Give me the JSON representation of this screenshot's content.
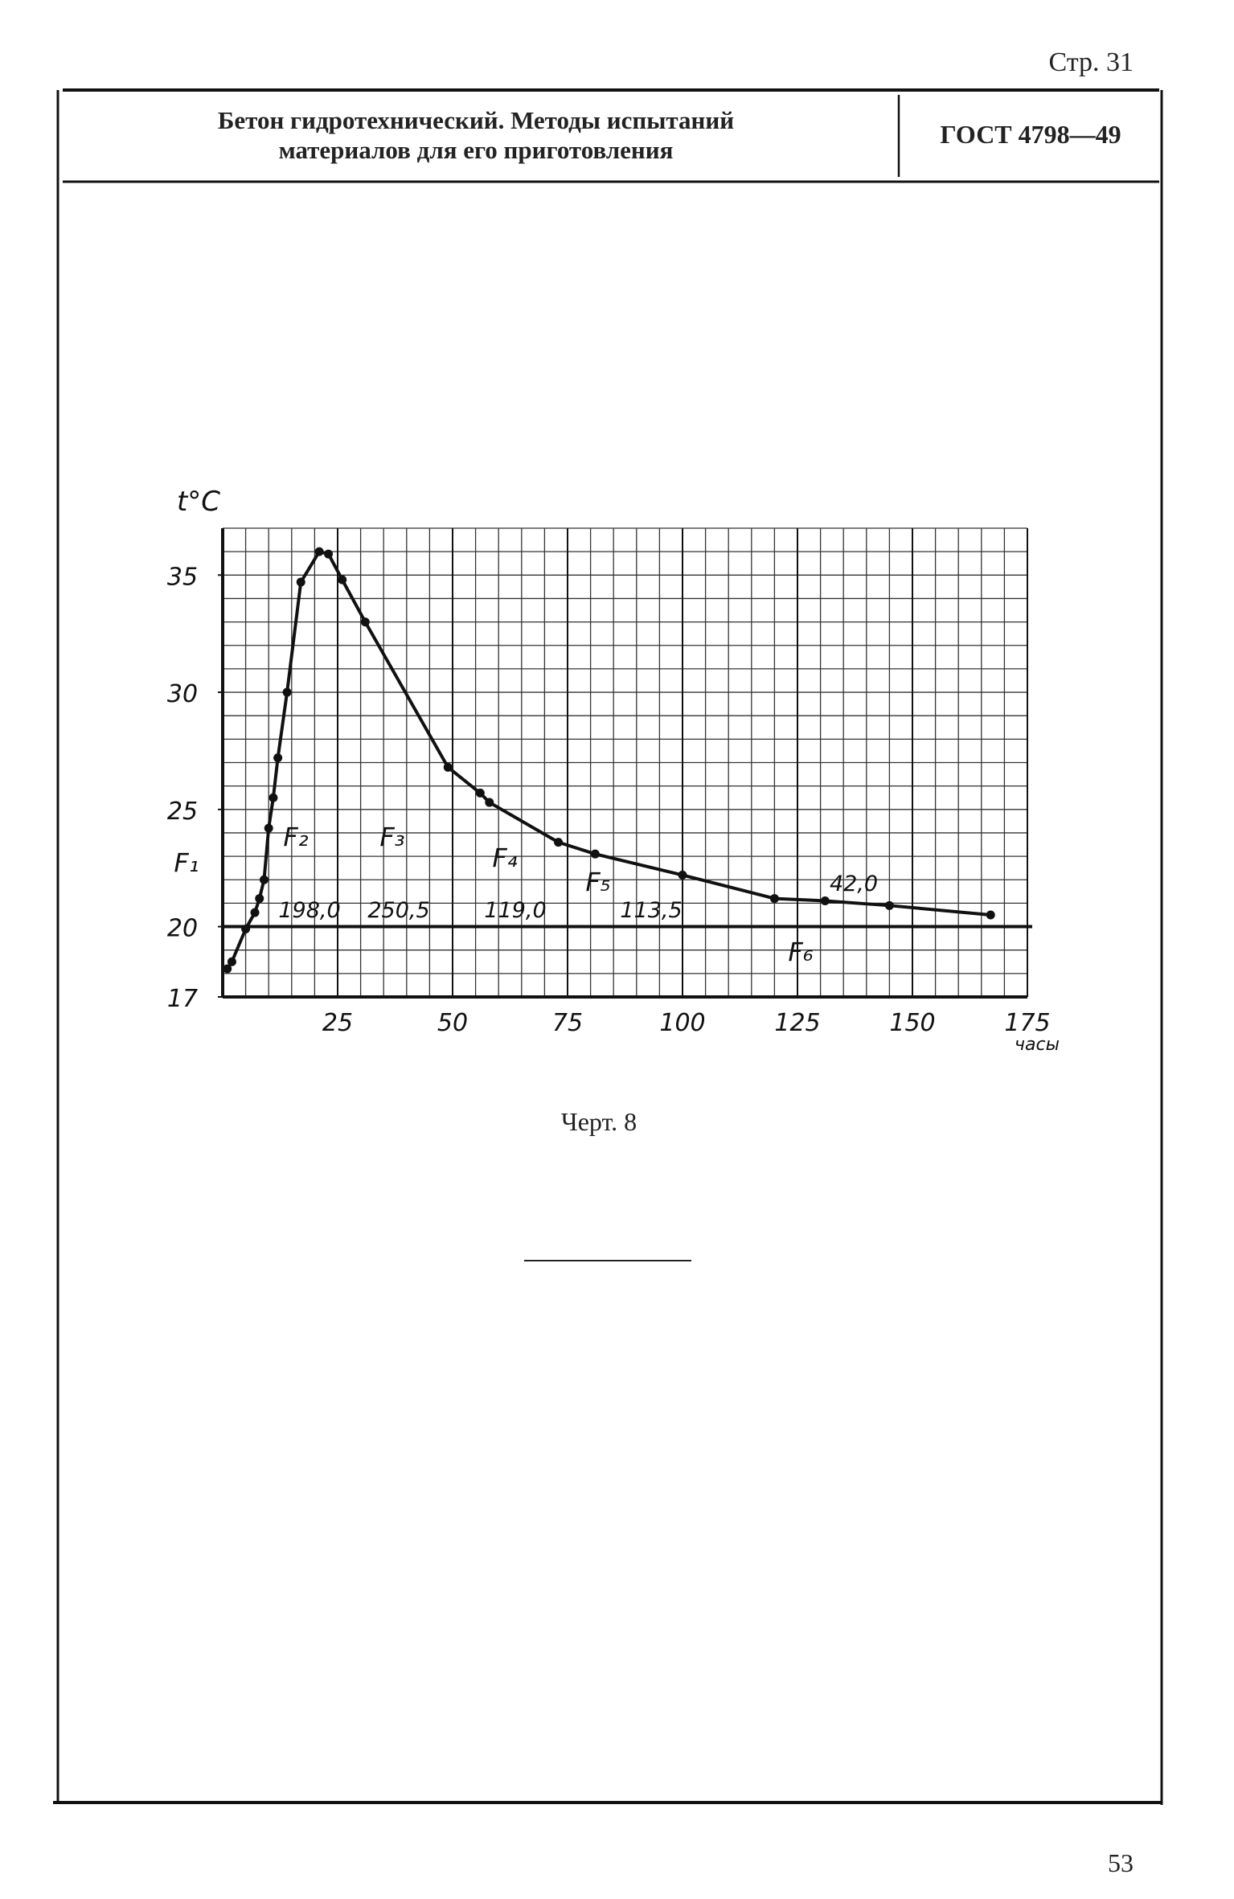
{
  "page_top": "Стр. 31",
  "header": {
    "title_line1": "Бетон гидротехнический. Методы испытаний",
    "title_line2": "материалов для его приготовления",
    "code": "ГОСТ 4798—49"
  },
  "chart_data": {
    "type": "line",
    "y_label": "t°C",
    "x_label": "часы",
    "x": [
      1,
      2,
      5,
      7,
      8,
      9,
      10,
      11,
      12,
      14,
      17,
      21,
      23,
      26,
      31,
      49,
      56,
      58,
      73,
      81,
      100,
      120,
      131,
      145,
      167
    ],
    "values": [
      18.2,
      18.5,
      19.9,
      20.6,
      21.2,
      22.0,
      24.2,
      25.5,
      27.2,
      30.0,
      34.7,
      36.0,
      35.9,
      34.8,
      33.0,
      26.8,
      25.7,
      25.3,
      23.6,
      23.1,
      22.2,
      21.2,
      21.1,
      20.9,
      20.5
    ],
    "color": "#111111",
    "xlim": [
      0,
      175
    ],
    "xticks": [
      25,
      50,
      75,
      100,
      125,
      150,
      175
    ],
    "ylim": [
      17,
      37
    ],
    "yticks": [
      17,
      20,
      25,
      30,
      35
    ],
    "grid": {
      "x_step": 5,
      "y_step": 1
    },
    "reference_line": 20,
    "annotations": [
      "F₁",
      "F₂",
      "F₃",
      "F₄",
      "F₅",
      "F₆",
      "198,0",
      "250,5",
      "119,0",
      "113,5",
      "42,0"
    ]
  },
  "caption": "Черт. 8",
  "page_bottom": "53"
}
